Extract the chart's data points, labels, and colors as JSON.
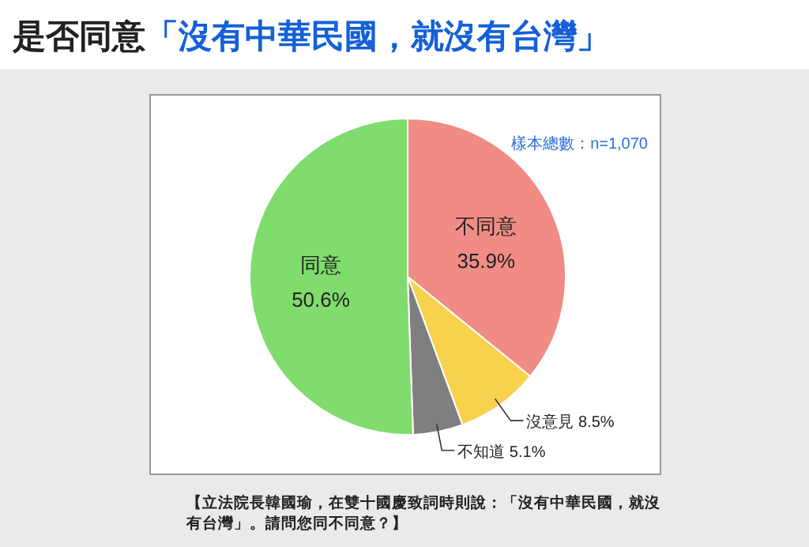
{
  "chart_data": {
    "type": "pie",
    "title": "是否同意「沒有中華民國，就沒有台灣」",
    "categories": [
      "不同意",
      "沒意見",
      "不知道",
      "同意"
    ],
    "values": [
      35.9,
      8.5,
      5.1,
      50.6
    ],
    "value_labels": [
      "35.9%",
      "8.5%",
      "5.1%",
      "50.6%"
    ],
    "colors": [
      "#f08c84",
      "#f8d24c",
      "#7f7f7f",
      "#80dc6c"
    ],
    "legend": false,
    "annotations": [
      "樣本總數：n=1,070",
      "【立法院長韓國瑜，在雙十國慶致詞時則說：「沒有中華民國，就沒有台灣」。請問您同不同意？】"
    ]
  }
}
